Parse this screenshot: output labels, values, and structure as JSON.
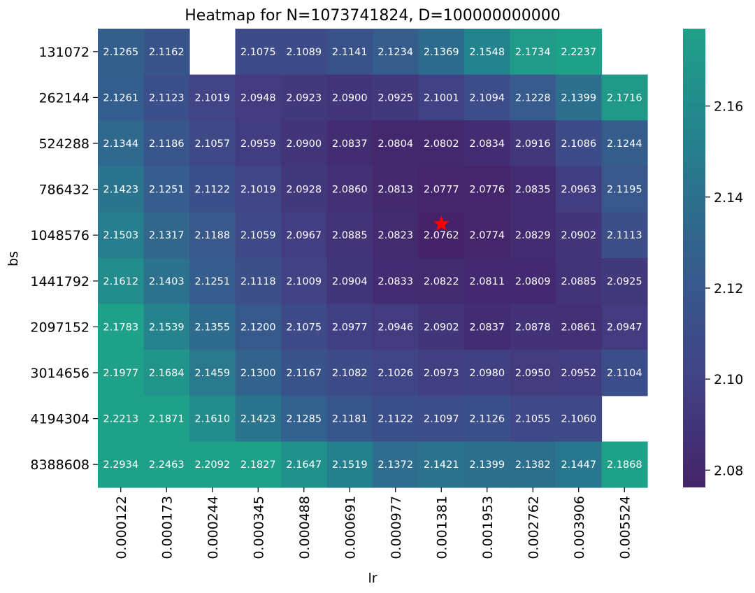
{
  "chart_data": {
    "type": "heatmap",
    "title": "Heatmap for N=1073741824, D=100000000000",
    "xlabel": "lr",
    "ylabel": "bs",
    "x": [
      "0.000122",
      "0.000173",
      "0.000244",
      "0.000345",
      "0.000488",
      "0.000691",
      "0.000977",
      "0.001381",
      "0.001953",
      "0.002762",
      "0.003906",
      "0.005524"
    ],
    "y": [
      "131072",
      "262144",
      "524288",
      "786432",
      "1048576",
      "1441792",
      "2097152",
      "3014656",
      "4194304",
      "8388608"
    ],
    "values": [
      [
        "2.1265",
        "2.1162",
        null,
        "2.1075",
        "2.1089",
        "2.1141",
        "2.1234",
        "2.1369",
        "2.1548",
        "2.1734",
        "2.2237",
        null
      ],
      [
        "2.1261",
        "2.1123",
        "2.1019",
        "2.0948",
        "2.0923",
        "2.0900",
        "2.0925",
        "2.1001",
        "2.1094",
        "2.1228",
        "2.1399",
        "2.1716"
      ],
      [
        "2.1344",
        "2.1186",
        "2.1057",
        "2.0959",
        "2.0900",
        "2.0837",
        "2.0804",
        "2.0802",
        "2.0834",
        "2.0916",
        "2.1086",
        "2.1244"
      ],
      [
        "2.1423",
        "2.1251",
        "2.1122",
        "2.1019",
        "2.0928",
        "2.0860",
        "2.0813",
        "2.0777",
        "2.0776",
        "2.0835",
        "2.0963",
        "2.1195"
      ],
      [
        "2.1503",
        "2.1317",
        "2.1188",
        "2.1059",
        "2.0967",
        "2.0885",
        "2.0823",
        "2.0762",
        "2.0774",
        "2.0829",
        "2.0902",
        "2.1113"
      ],
      [
        "2.1612",
        "2.1403",
        "2.1251",
        "2.1118",
        "2.1009",
        "2.0904",
        "2.0833",
        "2.0822",
        "2.0811",
        "2.0809",
        "2.0885",
        "2.0925"
      ],
      [
        "2.1783",
        "2.1539",
        "2.1355",
        "2.1200",
        "2.1075",
        "2.0977",
        "2.0946",
        "2.0902",
        "2.0837",
        "2.0878",
        "2.0861",
        "2.0947"
      ],
      [
        "2.1977",
        "2.1684",
        "2.1459",
        "2.1300",
        "2.1167",
        "2.1082",
        "2.1026",
        "2.0973",
        "2.0980",
        "2.0950",
        "2.0952",
        "2.1104"
      ],
      [
        "2.2213",
        "2.1871",
        "2.1610",
        "2.1423",
        "2.1285",
        "2.1181",
        "2.1122",
        "2.1097",
        "2.1126",
        "2.1055",
        "2.1060",
        null
      ],
      [
        "2.2934",
        "2.2463",
        "2.2092",
        "2.1827",
        "2.1647",
        "2.1519",
        "2.1372",
        "2.1421",
        "2.1399",
        "2.1382",
        "2.1447",
        "2.1868"
      ]
    ],
    "colormap": "viridis (truncated, purple to teal)",
    "vmin": 2.0762,
    "vmax": 2.177,
    "colorbar_ticks": [
      "2.08",
      "2.10",
      "2.12",
      "2.14",
      "2.16"
    ],
    "marker": {
      "symbol": "star",
      "color": "#ff0000",
      "x": "0.001381",
      "y": "1048576"
    },
    "grid": false
  }
}
